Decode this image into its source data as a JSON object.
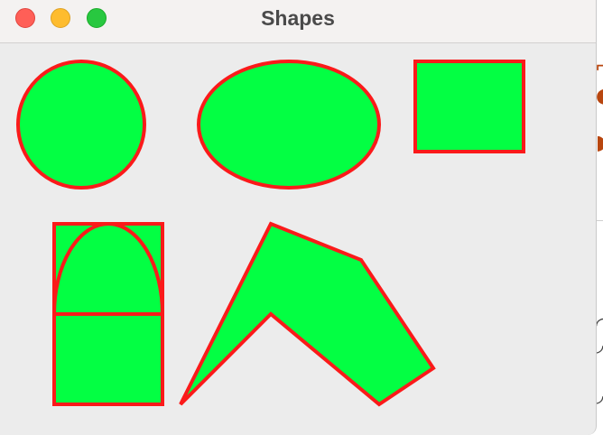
{
  "window": {
    "title": "Shapes",
    "controls": [
      {
        "name": "close",
        "color": "#ff5f57"
      },
      {
        "name": "minimize",
        "color": "#febc2e"
      },
      {
        "name": "zoom",
        "color": "#28c840"
      }
    ]
  },
  "colors": {
    "shape_fill": "#03ff43",
    "shape_stroke": "#fb1a1a",
    "window_background": "#ececec",
    "titlebar_background": "#f4f2f1"
  },
  "shapes": [
    {
      "kind": "circle"
    },
    {
      "kind": "ellipse"
    },
    {
      "kind": "rectangle"
    },
    {
      "kind": "arch-rectangle",
      "parts": [
        "rectangle",
        "semi-ellipse-arc",
        "horizontal-line"
      ]
    },
    {
      "kind": "polygon"
    }
  ]
}
